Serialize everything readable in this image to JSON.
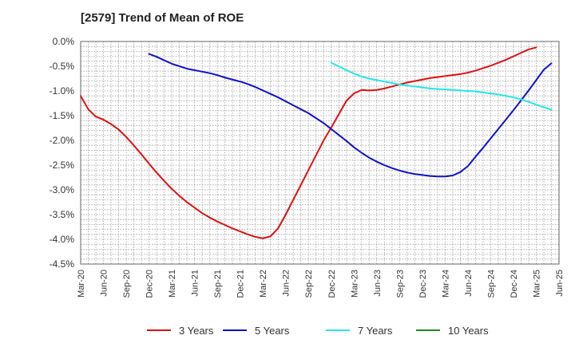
{
  "chart_data": {
    "type": "line",
    "title": "[2579]  Trend of Mean of ROE",
    "xlabel": "",
    "ylabel": "",
    "ylim": [
      -4.5,
      0.0
    ],
    "grid": true,
    "legend_position": "bottom",
    "x_ticks": [
      "Mar-20",
      "Jun-20",
      "Sep-20",
      "Dec-20",
      "Mar-21",
      "Jun-21",
      "Sep-21",
      "Dec-21",
      "Mar-22",
      "Jun-22",
      "Sep-22",
      "Dec-22",
      "Mar-23",
      "Jun-23",
      "Sep-23",
      "Dec-23",
      "Mar-24",
      "Jun-24",
      "Sep-24",
      "Dec-24",
      "Mar-25",
      "Jun-25"
    ],
    "y_ticks": [
      "0.0%",
      "-0.5%",
      "-1.0%",
      "-1.5%",
      "-2.0%",
      "-2.5%",
      "-3.0%",
      "-3.5%",
      "-4.0%",
      "-4.5%"
    ],
    "y_tick_values": [
      0.0,
      -0.5,
      -1.0,
      -1.5,
      -2.0,
      -2.5,
      -3.0,
      -3.5,
      -4.0,
      -4.5
    ],
    "series": [
      {
        "name": "3 Years",
        "color": "#dd1111",
        "points": [
          [
            "Mar-20",
            -1.1
          ],
          [
            "Apr-20",
            -1.37
          ],
          [
            "May-20",
            -1.52
          ],
          [
            "Jun-20",
            -1.58
          ],
          [
            "Jul-20",
            -1.67
          ],
          [
            "Aug-20",
            -1.78
          ],
          [
            "Sep-20",
            -1.93
          ],
          [
            "Oct-20",
            -2.1
          ],
          [
            "Nov-20",
            -2.28
          ],
          [
            "Dec-20",
            -2.47
          ],
          [
            "Jan-21",
            -2.65
          ],
          [
            "Feb-21",
            -2.82
          ],
          [
            "Mar-21",
            -2.98
          ],
          [
            "Apr-21",
            -3.12
          ],
          [
            "May-21",
            -3.25
          ],
          [
            "Jun-21",
            -3.36
          ],
          [
            "Jul-21",
            -3.47
          ],
          [
            "Aug-21",
            -3.56
          ],
          [
            "Sep-21",
            -3.64
          ],
          [
            "Oct-21",
            -3.71
          ],
          [
            "Nov-21",
            -3.78
          ],
          [
            "Dec-21",
            -3.84
          ],
          [
            "Jan-22",
            -3.9
          ],
          [
            "Feb-22",
            -3.95
          ],
          [
            "Mar-22",
            -3.98
          ],
          [
            "Apr-22",
            -3.94
          ],
          [
            "May-22",
            -3.78
          ],
          [
            "Jun-22",
            -3.5
          ],
          [
            "Jul-22",
            -3.2
          ],
          [
            "Aug-22",
            -2.9
          ],
          [
            "Sep-22",
            -2.6
          ],
          [
            "Oct-22",
            -2.3
          ],
          [
            "Nov-22",
            -2.0
          ],
          [
            "Dec-22",
            -1.74
          ],
          [
            "Jan-23",
            -1.47
          ],
          [
            "Feb-23",
            -1.2
          ],
          [
            "Mar-23",
            -1.05
          ],
          [
            "Apr-23",
            -0.98
          ],
          [
            "May-23",
            -0.99
          ],
          [
            "Jun-23",
            -0.98
          ],
          [
            "Jul-23",
            -0.95
          ],
          [
            "Aug-23",
            -0.91
          ],
          [
            "Sep-23",
            -0.87
          ],
          [
            "Oct-23",
            -0.83
          ],
          [
            "Nov-23",
            -0.8
          ],
          [
            "Dec-23",
            -0.77
          ],
          [
            "Jan-24",
            -0.74
          ],
          [
            "Feb-24",
            -0.72
          ],
          [
            "Mar-24",
            -0.7
          ],
          [
            "Apr-24",
            -0.68
          ],
          [
            "May-24",
            -0.66
          ],
          [
            "Jun-24",
            -0.63
          ],
          [
            "Jul-24",
            -0.59
          ],
          [
            "Aug-24",
            -0.54
          ],
          [
            "Sep-24",
            -0.49
          ],
          [
            "Oct-24",
            -0.43
          ],
          [
            "Nov-24",
            -0.37
          ],
          [
            "Dec-24",
            -0.3
          ],
          [
            "Jan-25",
            -0.23
          ],
          [
            "Feb-25",
            -0.16
          ],
          [
            "Mar-25",
            -0.12
          ]
        ]
      },
      {
        "name": "5 Years",
        "color": "#1111cc",
        "points": [
          [
            "Dec-20",
            -0.25
          ],
          [
            "Jan-21",
            -0.31
          ],
          [
            "Feb-21",
            -0.38
          ],
          [
            "Mar-21",
            -0.45
          ],
          [
            "Apr-21",
            -0.5
          ],
          [
            "May-21",
            -0.55
          ],
          [
            "Jun-21",
            -0.58
          ],
          [
            "Jul-21",
            -0.61
          ],
          [
            "Aug-21",
            -0.64
          ],
          [
            "Sep-21",
            -0.68
          ],
          [
            "Oct-21",
            -0.73
          ],
          [
            "Nov-21",
            -0.77
          ],
          [
            "Dec-21",
            -0.81
          ],
          [
            "Jan-22",
            -0.86
          ],
          [
            "Feb-22",
            -0.92
          ],
          [
            "Mar-22",
            -0.99
          ],
          [
            "Apr-22",
            -1.06
          ],
          [
            "May-22",
            -1.13
          ],
          [
            "Jun-22",
            -1.21
          ],
          [
            "Jul-22",
            -1.29
          ],
          [
            "Aug-22",
            -1.37
          ],
          [
            "Sep-22",
            -1.45
          ],
          [
            "Oct-22",
            -1.55
          ],
          [
            "Nov-22",
            -1.65
          ],
          [
            "Dec-22",
            -1.77
          ],
          [
            "Jan-23",
            -1.89
          ],
          [
            "Feb-23",
            -2.01
          ],
          [
            "Mar-23",
            -2.14
          ],
          [
            "Apr-23",
            -2.25
          ],
          [
            "May-23",
            -2.35
          ],
          [
            "Jun-23",
            -2.43
          ],
          [
            "Jul-23",
            -2.5
          ],
          [
            "Aug-23",
            -2.56
          ],
          [
            "Sep-23",
            -2.61
          ],
          [
            "Oct-23",
            -2.65
          ],
          [
            "Nov-23",
            -2.68
          ],
          [
            "Dec-23",
            -2.7
          ],
          [
            "Jan-24",
            -2.72
          ],
          [
            "Feb-24",
            -2.73
          ],
          [
            "Mar-24",
            -2.73
          ],
          [
            "Apr-24",
            -2.71
          ],
          [
            "May-24",
            -2.64
          ],
          [
            "Jun-24",
            -2.52
          ],
          [
            "Jul-24",
            -2.33
          ],
          [
            "Aug-24",
            -2.15
          ],
          [
            "Sep-24",
            -1.96
          ],
          [
            "Oct-24",
            -1.77
          ],
          [
            "Nov-24",
            -1.58
          ],
          [
            "Dec-24",
            -1.39
          ],
          [
            "Jan-25",
            -1.19
          ],
          [
            "Feb-25",
            -0.99
          ],
          [
            "Mar-25",
            -0.78
          ],
          [
            "Apr-25",
            -0.57
          ],
          [
            "May-25",
            -0.44
          ]
        ]
      },
      {
        "name": "7 Years",
        "color": "#22e8e8",
        "points": [
          [
            "Dec-22",
            -0.43
          ],
          [
            "Jan-23",
            -0.5
          ],
          [
            "Feb-23",
            -0.58
          ],
          [
            "Mar-23",
            -0.65
          ],
          [
            "Apr-23",
            -0.71
          ],
          [
            "May-23",
            -0.75
          ],
          [
            "Jun-23",
            -0.78
          ],
          [
            "Jul-23",
            -0.81
          ],
          [
            "Aug-23",
            -0.84
          ],
          [
            "Sep-23",
            -0.87
          ],
          [
            "Oct-23",
            -0.89
          ],
          [
            "Nov-23",
            -0.91
          ],
          [
            "Dec-23",
            -0.93
          ],
          [
            "Jan-24",
            -0.95
          ],
          [
            "Feb-24",
            -0.96
          ],
          [
            "Mar-24",
            -0.97
          ],
          [
            "Apr-24",
            -0.98
          ],
          [
            "May-24",
            -0.99
          ],
          [
            "Jun-24",
            -1.0
          ],
          [
            "Jul-24",
            -1.01
          ],
          [
            "Aug-24",
            -1.03
          ],
          [
            "Sep-24",
            -1.05
          ],
          [
            "Oct-24",
            -1.07
          ],
          [
            "Nov-24",
            -1.1
          ],
          [
            "Dec-24",
            -1.13
          ],
          [
            "Jan-25",
            -1.17
          ],
          [
            "Feb-25",
            -1.22
          ],
          [
            "Mar-25",
            -1.28
          ],
          [
            "Apr-25",
            -1.33
          ],
          [
            "May-25",
            -1.38
          ]
        ]
      },
      {
        "name": "10 Years",
        "color": "#228822",
        "points": []
      }
    ]
  }
}
